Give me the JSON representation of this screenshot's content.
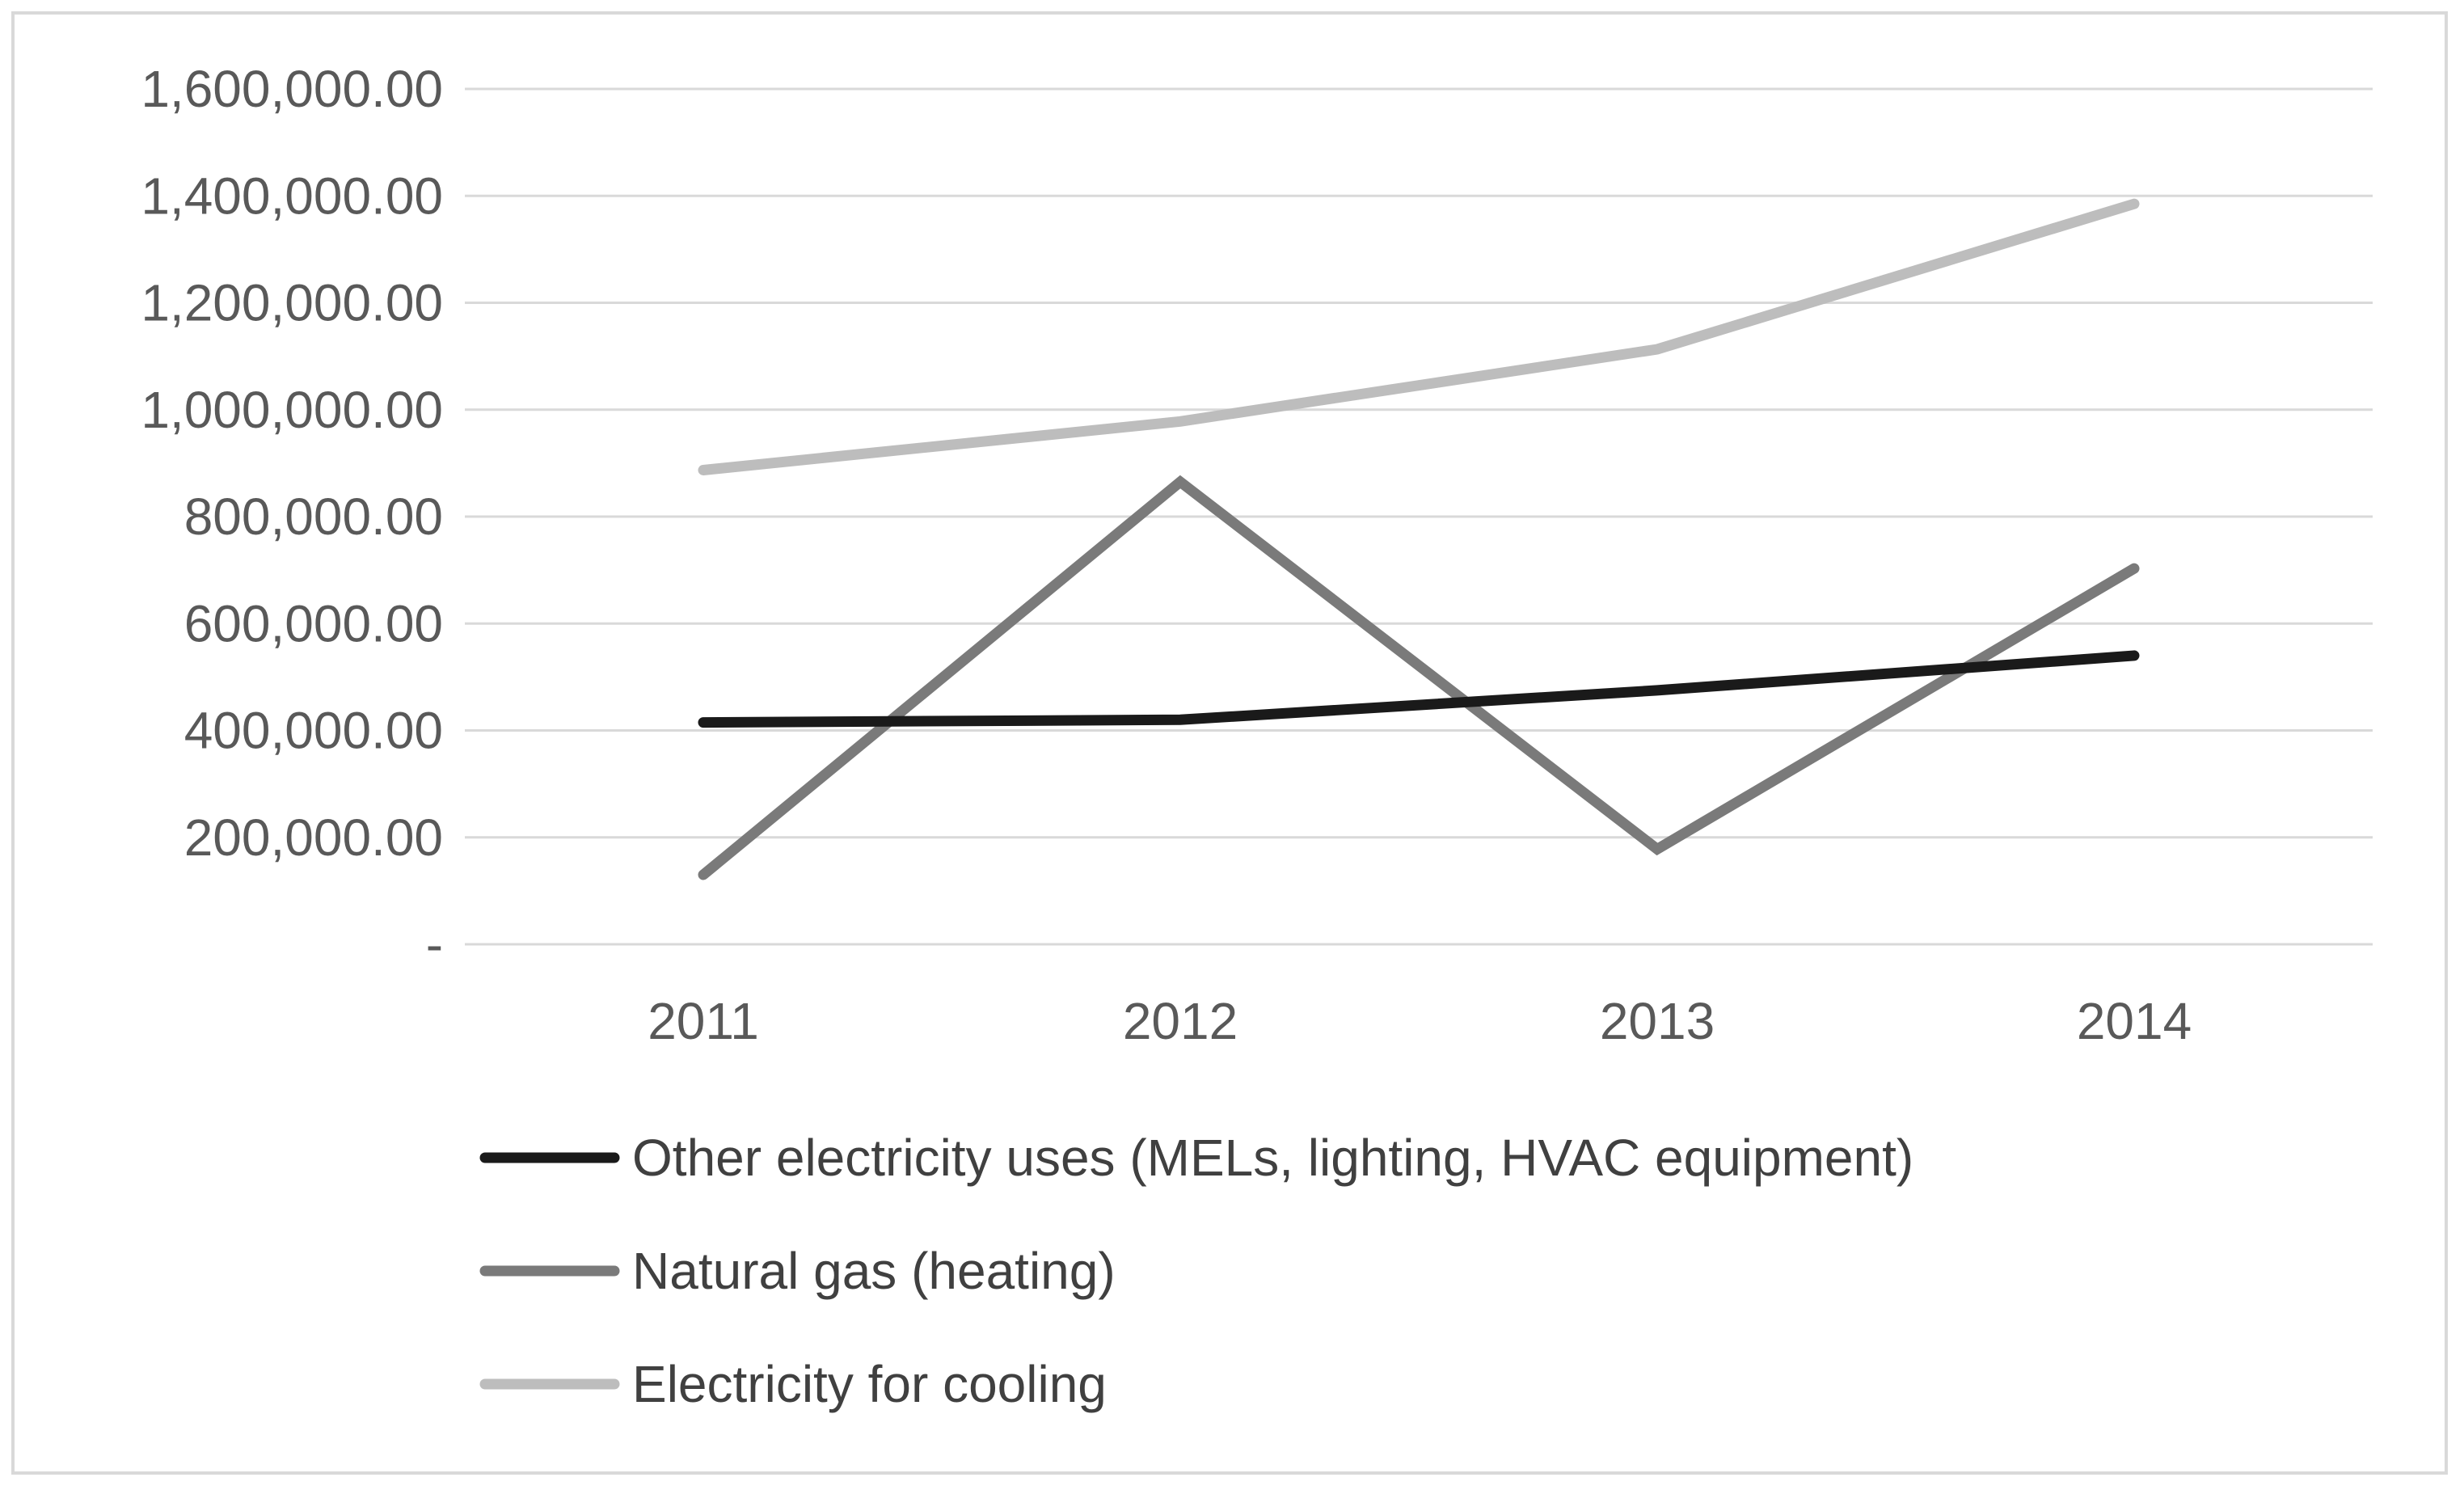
{
  "chart_data": {
    "type": "line",
    "title": "",
    "xlabel": "",
    "ylabel": "",
    "categories": [
      "2011",
      "2012",
      "2013",
      "2014"
    ],
    "ylim": [
      0,
      1600000
    ],
    "yticks": [
      0,
      200000,
      400000,
      600000,
      800000,
      1000000,
      1200000,
      1400000,
      1600000
    ],
    "ytick_labels": [
      "-",
      "200,000.00",
      "400,000.00",
      "600,000.00",
      "800,000.00",
      "1,000,000.00",
      "1,200,000.00",
      "1,400,000.00",
      "1,600,000.00"
    ],
    "grid": "horizontal",
    "legend_position": "bottom-left",
    "series": [
      {
        "name": "Other electricity uses (MELs, lighting, HVAC equipment)",
        "values": [
          415000,
          420000,
          475000,
          540000
        ],
        "color": "#1a1a1a"
      },
      {
        "name": "Natural gas (heating)",
        "values": [
          130000,
          865000,
          178000,
          703000
        ],
        "color": "#7a7a7a"
      },
      {
        "name": "Electricity for cooling",
        "values": [
          887000,
          978000,
          1113000,
          1385000
        ],
        "color": "#bdbdbd"
      }
    ]
  }
}
